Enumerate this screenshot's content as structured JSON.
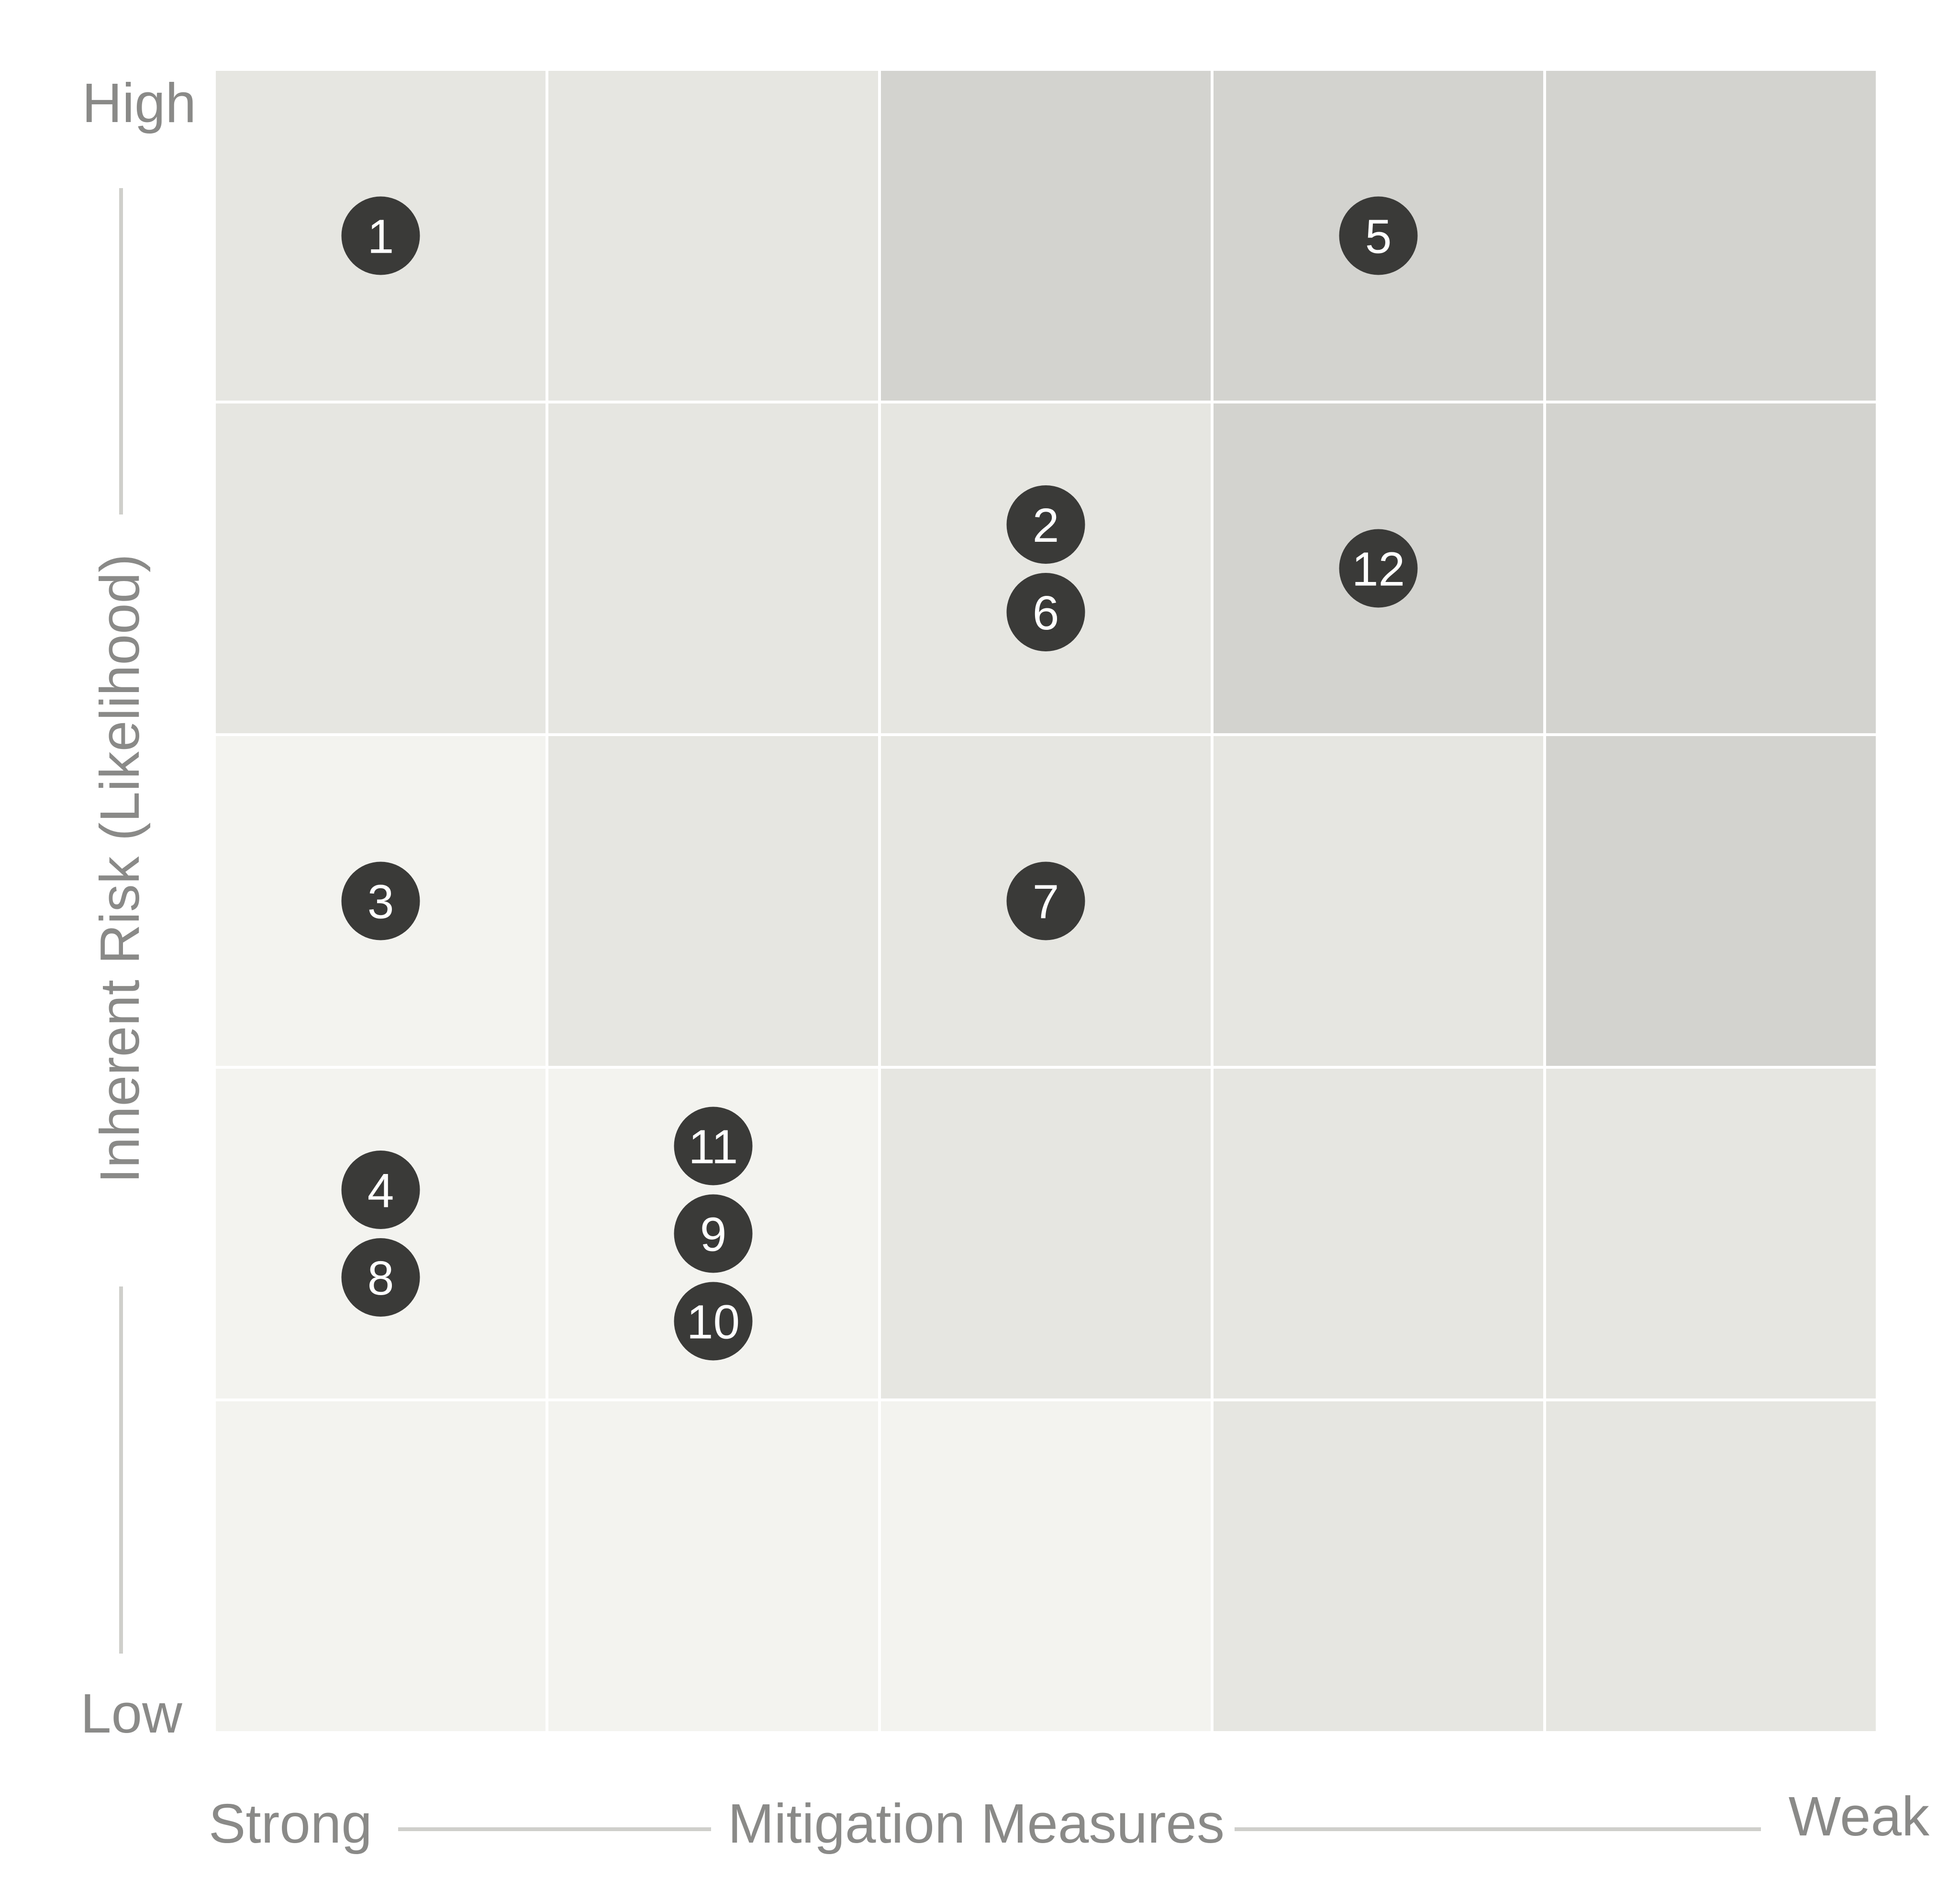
{
  "chart_data": {
    "type": "heatmap",
    "title": "",
    "xlabel": "Mitigation Measures",
    "ylabel": "Inherent Risk (Likelihood)",
    "x_end_labels": {
      "min": "Strong",
      "max": "Weak"
    },
    "y_end_labels": {
      "min": "Low",
      "max": "High"
    },
    "grid": true,
    "shade_colors": {
      "1": "#f3f3ef",
      "2": "#e6e6e1",
      "3": "#d3d3cf"
    },
    "cells": [
      [
        2,
        2,
        3,
        3,
        3
      ],
      [
        2,
        2,
        2,
        3,
        3
      ],
      [
        1,
        2,
        2,
        2,
        3
      ],
      [
        1,
        1,
        2,
        2,
        2
      ],
      [
        1,
        1,
        1,
        2,
        2
      ]
    ],
    "items": [
      {
        "id": "1",
        "col": 1,
        "row": 1
      },
      {
        "id": "5",
        "col": 4,
        "row": 1
      },
      {
        "id": "2",
        "col": 3,
        "row": 2
      },
      {
        "id": "6",
        "col": 3,
        "row": 2
      },
      {
        "id": "12",
        "col": 4,
        "row": 2
      },
      {
        "id": "3",
        "col": 1,
        "row": 3
      },
      {
        "id": "7",
        "col": 3,
        "row": 3
      },
      {
        "id": "4",
        "col": 1,
        "row": 4
      },
      {
        "id": "8",
        "col": 1,
        "row": 4
      },
      {
        "id": "11",
        "col": 2,
        "row": 4
      },
      {
        "id": "9",
        "col": 2,
        "row": 4
      },
      {
        "id": "10",
        "col": 2,
        "row": 4
      }
    ],
    "marker_color": "#3a3a38",
    "marker_text_color": "#ffffff",
    "axis_text_color": "#8a8a88"
  }
}
